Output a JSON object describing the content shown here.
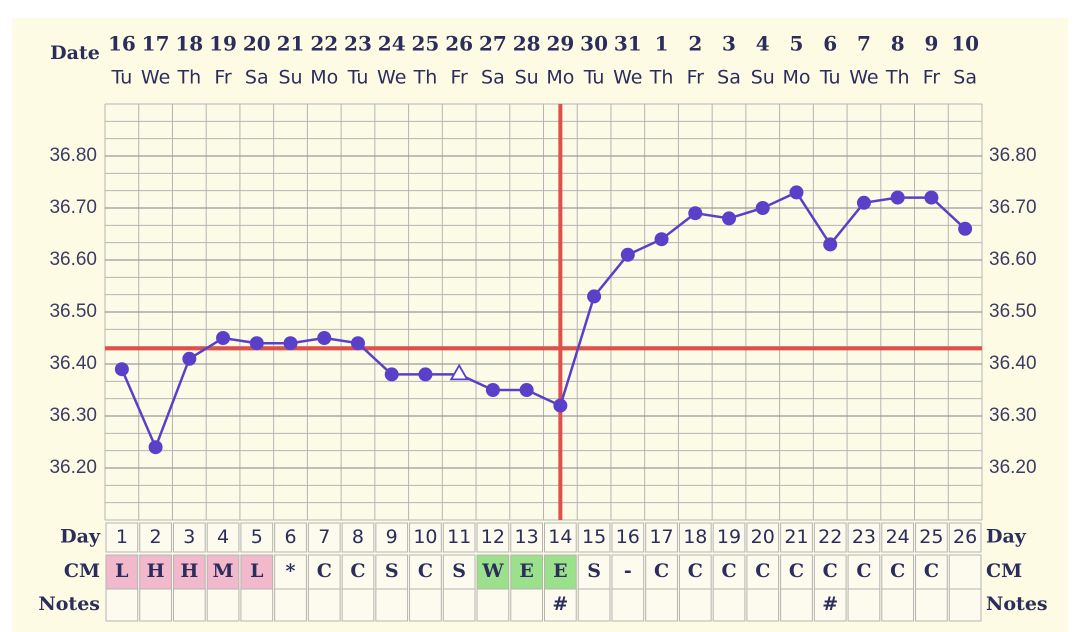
{
  "chart_data": {
    "type": "line",
    "date_label": "Date",
    "day_label": "Day",
    "cm_label": "CM",
    "notes_label": "Notes",
    "categories": [
      "16",
      "17",
      "18",
      "19",
      "20",
      "21",
      "22",
      "23",
      "24",
      "25",
      "26",
      "27",
      "28",
      "29",
      "30",
      "31",
      "1",
      "2",
      "3",
      "4",
      "5",
      "6",
      "7",
      "8",
      "9",
      "10"
    ],
    "weekdays": [
      "Tu",
      "We",
      "Th",
      "Fr",
      "Sa",
      "Su",
      "Mo",
      "Tu",
      "We",
      "Th",
      "Fr",
      "Sa",
      "Su",
      "Mo",
      "Tu",
      "We",
      "Th",
      "Fr",
      "Sa",
      "Su",
      "Mo",
      "Tu",
      "We",
      "Th",
      "Fr",
      "Sa"
    ],
    "days": [
      1,
      2,
      3,
      4,
      5,
      6,
      7,
      8,
      9,
      10,
      11,
      12,
      13,
      14,
      15,
      16,
      17,
      18,
      19,
      20,
      21,
      22,
      23,
      24,
      25,
      26
    ],
    "values": [
      36.39,
      36.24,
      36.41,
      36.45,
      36.44,
      36.44,
      36.45,
      36.44,
      36.38,
      36.38,
      36.38,
      36.35,
      36.35,
      36.32,
      36.53,
      36.61,
      36.64,
      36.69,
      36.68,
      36.7,
      36.73,
      36.63,
      36.71,
      36.72,
      36.72,
      36.66
    ],
    "color": "#5a40c8",
    "hollow_days": [
      11
    ],
    "ylim": [
      36.1,
      36.9
    ],
    "yticks": [
      {
        "value": 36.2,
        "label": "36.20"
      },
      {
        "value": 36.3,
        "label": "36.30"
      },
      {
        "value": 36.4,
        "label": "36.40"
      },
      {
        "value": 36.5,
        "label": "36.50"
      },
      {
        "value": 36.6,
        "label": "36.60"
      },
      {
        "value": 36.7,
        "label": "36.70"
      },
      {
        "value": 36.8,
        "label": "36.80"
      }
    ],
    "grid": true,
    "coverline": {
      "value": 36.43,
      "color": "#e0504a"
    },
    "ovulation_day": 14,
    "ovulation_color": "#e0504a",
    "cm": [
      "L",
      "H",
      "H",
      "M",
      "L",
      "*",
      "C",
      "C",
      "S",
      "C",
      "S",
      "W",
      "E",
      "E",
      "S",
      "-",
      "C",
      "C",
      "C",
      "C",
      "C",
      "C",
      "C",
      "C",
      "C",
      null
    ],
    "cm_colors": {
      "L": "#f2b8cc",
      "H": "#f2b8cc",
      "M": "#f2b8cc",
      "W": "#9be08a",
      "E": "#9be08a"
    },
    "notes": [
      null,
      null,
      null,
      null,
      null,
      null,
      null,
      null,
      null,
      null,
      null,
      null,
      null,
      "#",
      null,
      null,
      null,
      null,
      null,
      null,
      null,
      "#",
      null,
      null,
      null,
      null
    ]
  }
}
